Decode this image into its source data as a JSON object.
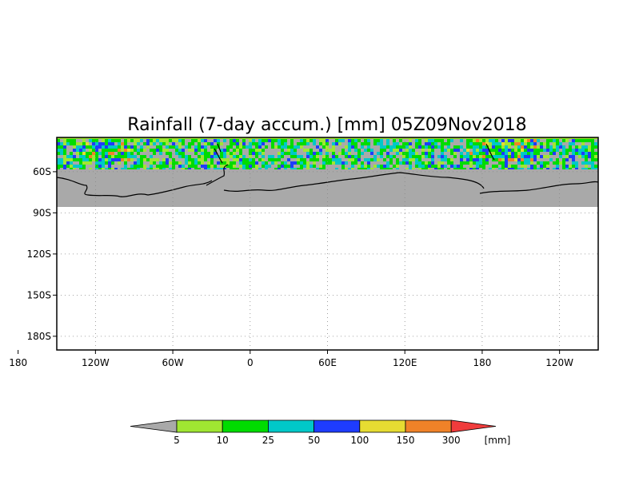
{
  "title": "Rainfall (7-day accum.) [mm] 05Z09Nov2018",
  "map": {
    "lat_range": [
      -190,
      -35
    ],
    "lon_range": [
      -150,
      270
    ],
    "data_extent_lat": [
      -90,
      -40
    ],
    "ocean_color": "#ffffff",
    "land_no_data_color": "#a9a9a9",
    "grid": "dotted",
    "y_ticks": [
      {
        "lat": -60,
        "label": "60S"
      },
      {
        "lat": -90,
        "label": "90S"
      },
      {
        "lat": -120,
        "label": "120S"
      },
      {
        "lat": -150,
        "label": "150S"
      },
      {
        "lat": -180,
        "label": "180S"
      }
    ],
    "x_ticks": [
      {
        "lon": -180,
        "label": "180"
      },
      {
        "lon": -120,
        "label": "120W"
      },
      {
        "lon": -60,
        "label": "60W"
      },
      {
        "lon": 0,
        "label": "0"
      },
      {
        "lon": 60,
        "label": "60E"
      },
      {
        "lon": 120,
        "label": "120E"
      },
      {
        "lon": 180,
        "label": "180"
      },
      {
        "lon": 240,
        "label": "120W"
      }
    ]
  },
  "colorbar": {
    "unit": "[mm]",
    "labels": [
      "5",
      "10",
      "25",
      "50",
      "100",
      "150",
      "300"
    ],
    "colors": [
      "#a9a9a9",
      "#a0e632",
      "#00dc00",
      "#00c8c8",
      "#1e3cff",
      "#e6dc32",
      "#f08228",
      "#f03c3c"
    ]
  }
}
